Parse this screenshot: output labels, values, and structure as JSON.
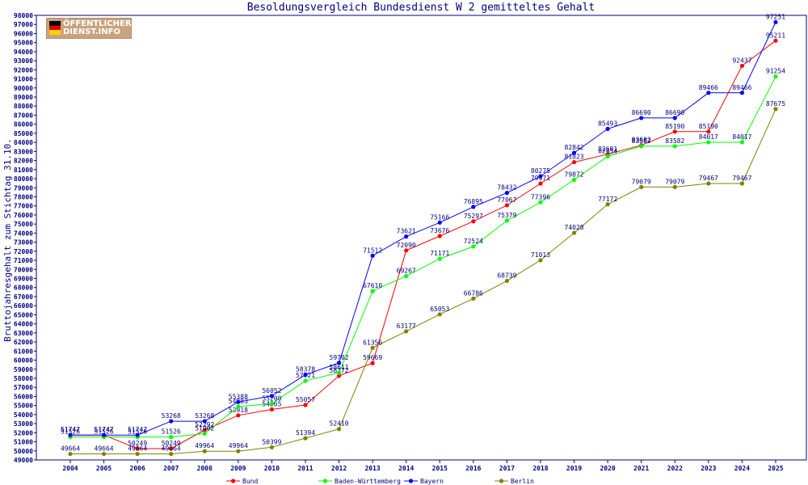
{
  "chart_data": {
    "type": "line",
    "title": "Besoldungsvergleich Bundesdienst W 2 gemitteltes Gehalt",
    "xlabel": "",
    "ylabel": "Bruttojahresgehalt zum Stichtag 31.10.",
    "categories": [
      "2004",
      "2005",
      "2006",
      "2007",
      "2008",
      "2009",
      "2010",
      "2011",
      "2012",
      "2013",
      "2014",
      "2015",
      "2016",
      "2017",
      "2018",
      "2019",
      "2020",
      "2021",
      "2022",
      "2023",
      "2024",
      "2025"
    ],
    "ylim": [
      49000,
      98000
    ],
    "ytick_step": 1000,
    "grid": false,
    "legend_position": "bottom",
    "series": [
      {
        "name": "Bund",
        "color": "#ff0000",
        "values": [
          51747,
          51747,
          50249,
          50249,
          52292,
          53918,
          54565,
          55057,
          58272,
          59669,
          72090,
          73676,
          75297,
          77067,
          79471,
          81823,
          82691,
          83682,
          85190,
          85190,
          92437,
          95211
        ]
      },
      {
        "name": "Baden-Württemberg",
        "color": "#00ff00",
        "values": [
          51526,
          51526,
          51526,
          51526,
          51902,
          54883,
          55200,
          57721,
          58611,
          67610,
          69267,
          71171,
          72524,
          75379,
          77396,
          79872,
          82454,
          83582,
          83582,
          84017,
          84017,
          91254
        ]
      },
      {
        "name": "Bayern",
        "color": "#0000ff",
        "values": [
          51747,
          51747,
          51747,
          53268,
          53268,
          55388,
          56052,
          58378,
          59702,
          71512,
          73621,
          75166,
          76895,
          78432,
          80275,
          82842,
          85493,
          86690,
          86690,
          89466,
          89466,
          97251
        ]
      },
      {
        "name": "Berlin",
        "color": "#808000",
        "values": [
          49664,
          49664,
          49664,
          49664,
          49964,
          49964,
          50399,
          51394,
          52410,
          61356,
          63177,
          65053,
          66786,
          68739,
          71013,
          74028,
          77172,
          79079,
          79079,
          79467,
          79467,
          87675
        ]
      }
    ]
  },
  "logo": {
    "line1": "ÖFFENTLICHER",
    "line2": "DIENST.INFO",
    "flag_colors": [
      "#000000",
      "#dd0000",
      "#ffce00"
    ]
  }
}
